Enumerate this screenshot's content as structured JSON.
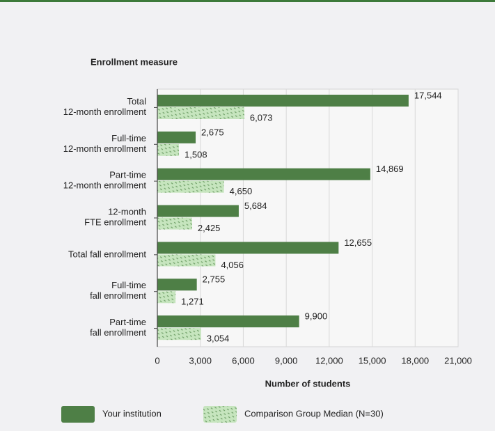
{
  "chart_data": {
    "type": "hbar",
    "title": "Enrollment measure",
    "xlabel": "Number of students",
    "categories": [
      "Total\n12-month enrollment",
      "Full-time\n12-month enrollment",
      "Part-time\n12-month enrollment",
      "12-month\nFTE enrollment",
      "Total fall enrollment",
      "Full-time\nfall enrollment",
      "Part-time\nfall enrollment"
    ],
    "series": [
      {
        "name": "Your institution",
        "color": "#4e7f46",
        "values": [
          17544,
          2675,
          14869,
          5684,
          12655,
          2755,
          9900
        ],
        "value_labels": [
          "17,544",
          "2,675",
          "14,869",
          "5,684",
          "12,655",
          "2,755",
          "9,900"
        ]
      },
      {
        "name": "Comparison Group Median (N=30)",
        "color": "#bfe0b6",
        "values": [
          6073,
          1508,
          4650,
          2425,
          4056,
          1271,
          3054
        ],
        "value_labels": [
          "6,073",
          "1,508",
          "4,650",
          "2,425",
          "4,056",
          "1,271",
          "3,054"
        ]
      }
    ],
    "xlim": [
      0,
      21000
    ],
    "xticks": [
      0,
      {
        "value": 3000,
        "label": "3,000"
      },
      {
        "value": 6000,
        "label": "6,000"
      },
      {
        "value": 9000,
        "label": "9,000"
      },
      {
        "value": 12000,
        "label": "12,000"
      },
      {
        "value": 15000,
        "label": "15,000"
      },
      {
        "value": 18000,
        "label": "18,000"
      },
      {
        "value": 21000,
        "label": "21,000"
      }
    ],
    "grid": true
  }
}
